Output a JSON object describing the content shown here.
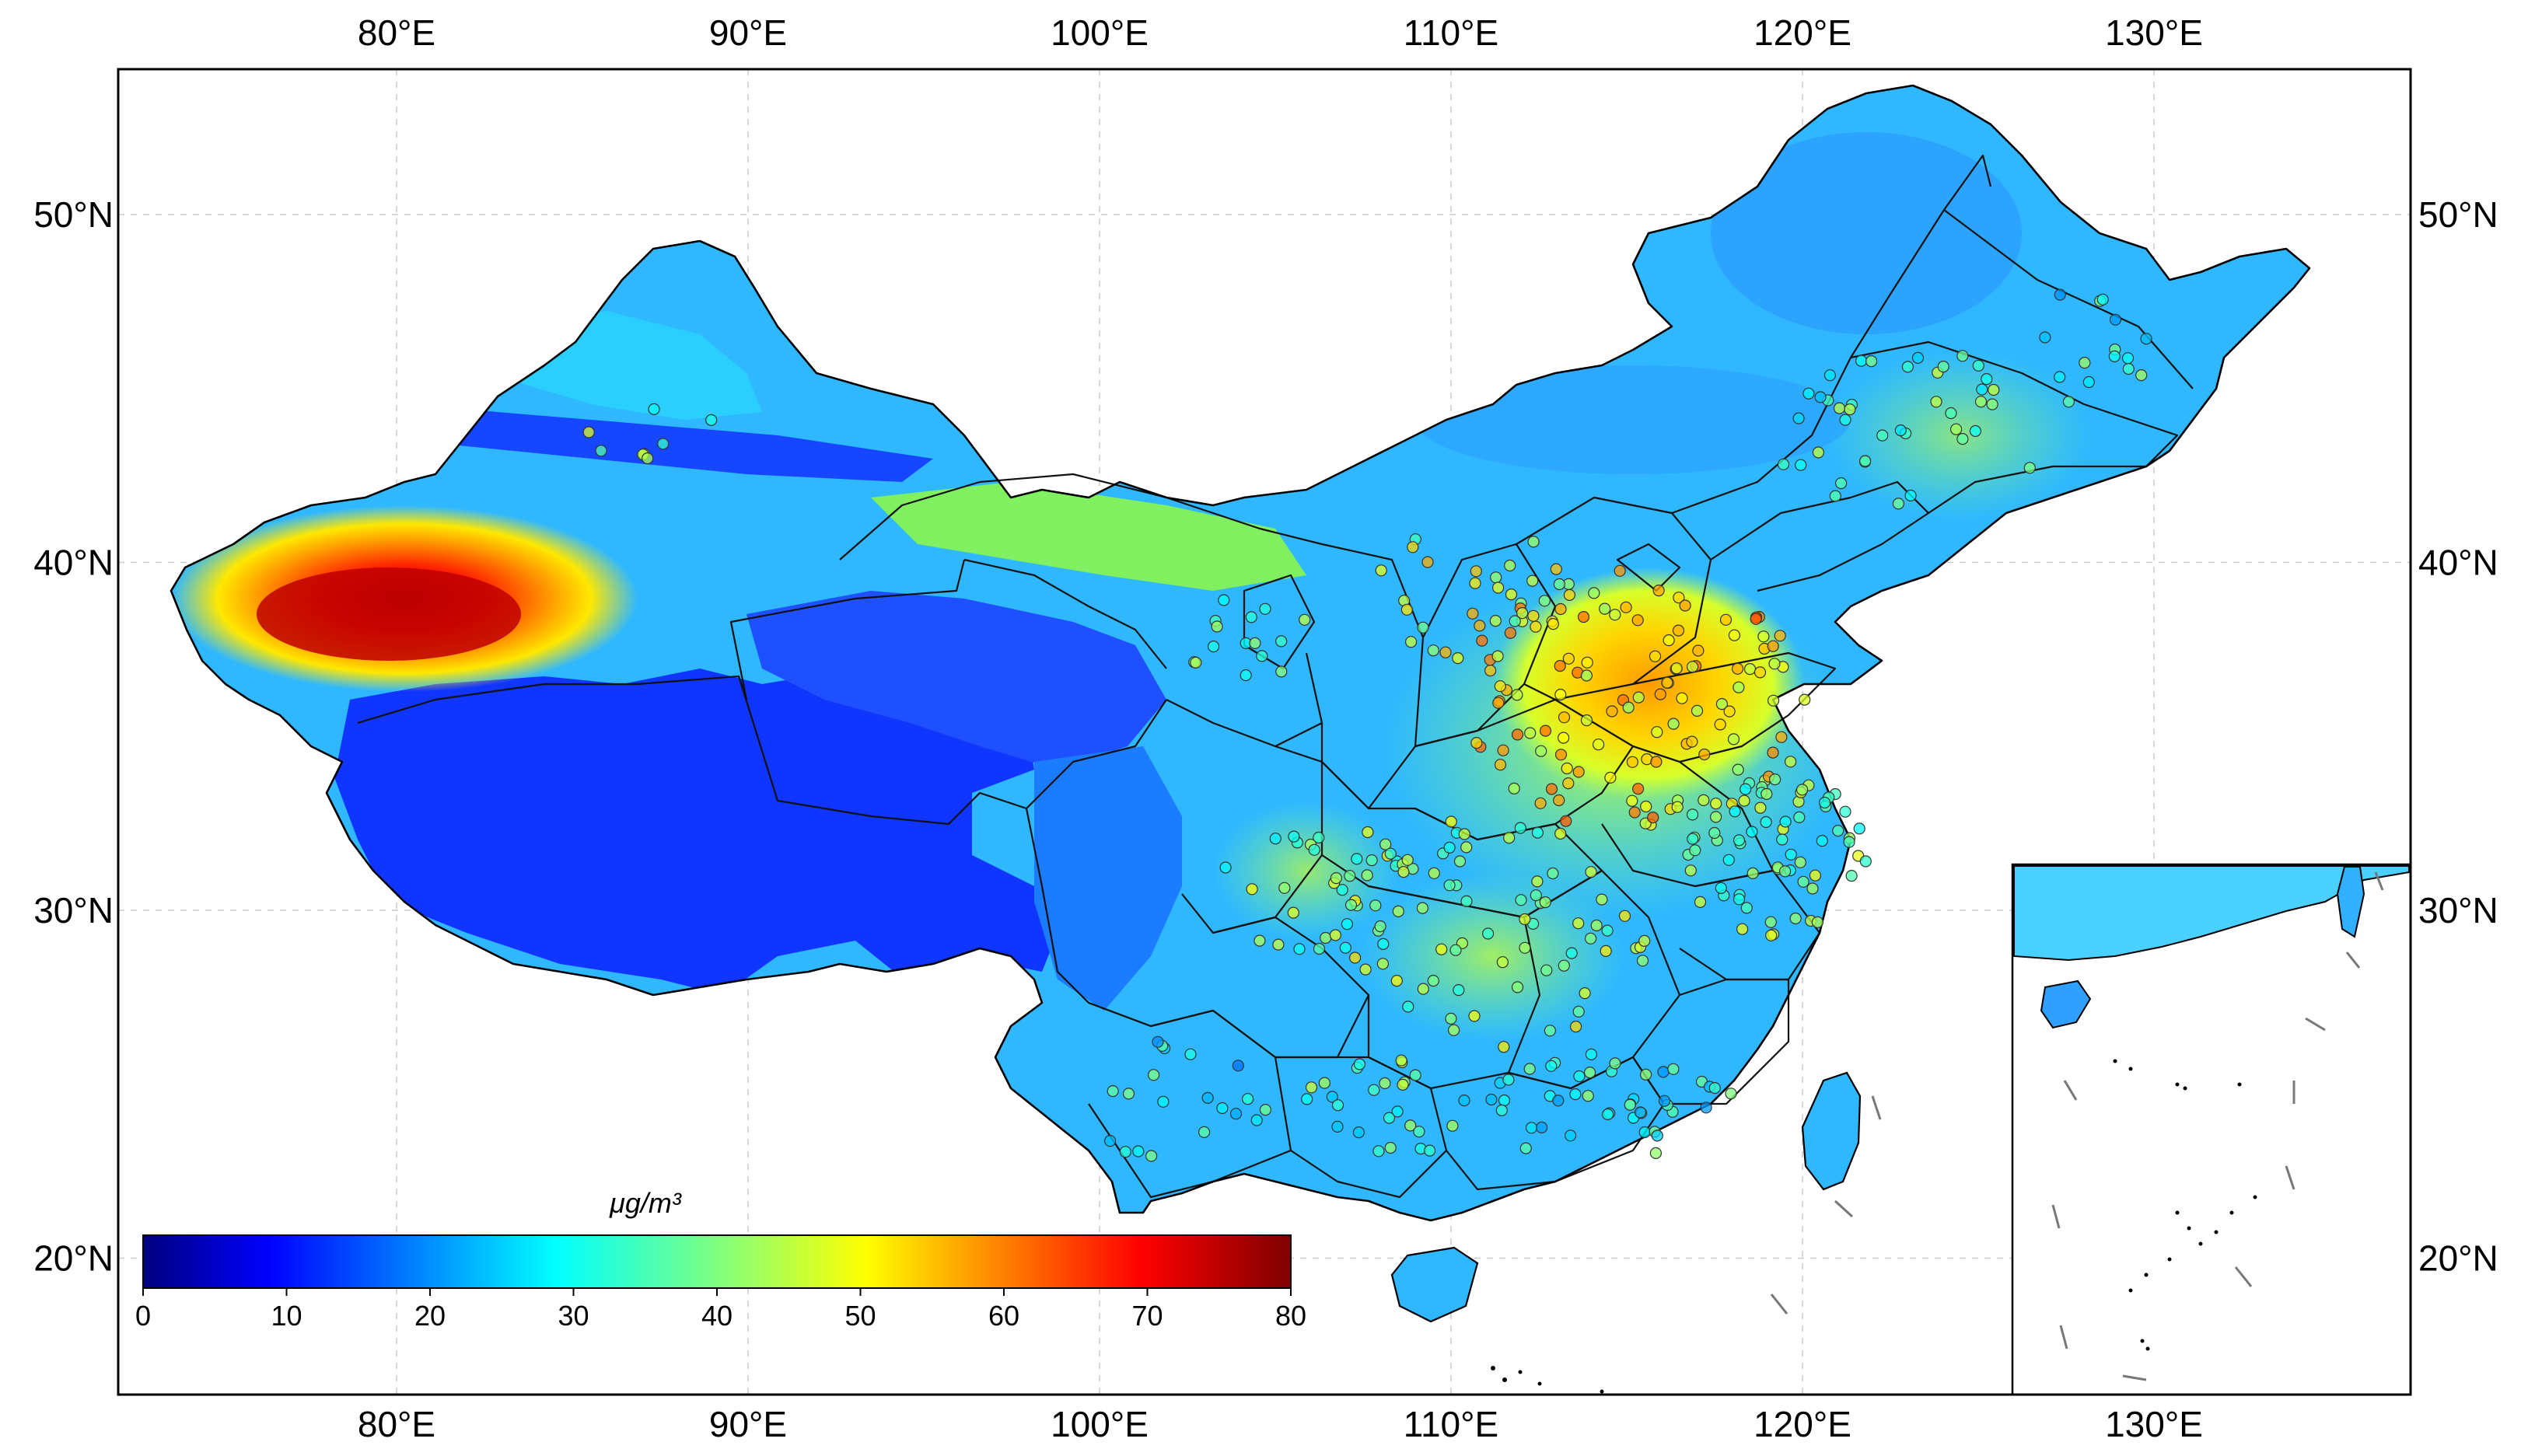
{
  "map": {
    "longitude_labels": [
      "80°E",
      "90°E",
      "100°E",
      "110°E",
      "120°E",
      "130°E"
    ],
    "latitude_labels": [
      "50°N",
      "40°N",
      "30°N",
      "20°N"
    ],
    "longitudes": [
      80,
      90,
      100,
      110,
      120,
      130
    ],
    "latitudes": [
      50,
      40,
      30,
      20
    ],
    "extent": {
      "lon_min": 71.9,
      "lon_max": 137.2,
      "lat_min": 15.9,
      "lat_max": 53.9
    },
    "gridlines": true,
    "colorbar": {
      "unit_label": "μg/m³",
      "min": 0,
      "max": 80,
      "tick_labels": [
        "0",
        "10",
        "20",
        "30",
        "40",
        "50",
        "60",
        "70",
        "80"
      ],
      "tick_values": [
        0,
        10,
        20,
        30,
        40,
        50,
        60,
        70,
        80
      ],
      "colormap": "jet",
      "colors": [
        "#00007f",
        "#0000ff",
        "#007fff",
        "#00ffff",
        "#7fff7f",
        "#ffff00",
        "#ff7f00",
        "#ff0000",
        "#7f0000"
      ],
      "placement": "bottom-left"
    },
    "inset": {
      "placement": "bottom-right",
      "subject": "South China Sea islands"
    }
  }
}
